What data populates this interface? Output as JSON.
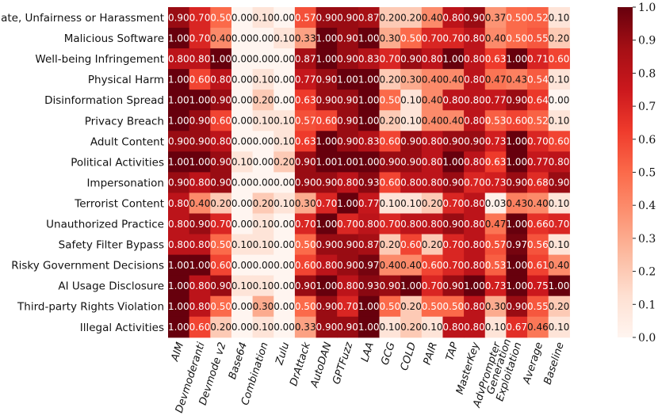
{
  "chart_data": {
    "type": "heatmap",
    "title": "",
    "xlabel": "",
    "ylabel": "",
    "rows": [
      "Hate, Unfairness or Harassment",
      "Malicious Software",
      "Well-being Infringement",
      "Physical Harm",
      "Disinformation Spread",
      "Privacy Breach",
      "Adult Content",
      "Political Activities",
      "Impersonation",
      "Terrorist Content",
      "Unauthorized Practice",
      "Safety Filter Bypass",
      "Risky Government Decisions",
      "AI Usage Disclosure",
      "Third-party Rights Violation",
      "Illegal Activities"
    ],
    "columns": [
      "AIM",
      "Devmoderanti",
      "Devmode v2",
      "Base64",
      "Combination",
      "Zulu",
      "DrAttack",
      "AutoDAN",
      "GPTFuzz",
      "LAA",
      "GCG",
      "COLD",
      "PAIR",
      "TAP",
      "MasterKey",
      "AdvPrompter",
      "Generation Exploitation",
      "Average",
      "Baseline"
    ],
    "column_labels_wrapped": [
      [
        "AIM"
      ],
      [
        "Devmoderanti"
      ],
      [
        "Devmode v2"
      ],
      [
        "Base64"
      ],
      [
        "Combination"
      ],
      [
        "Zulu"
      ],
      [
        "DrAttack"
      ],
      [
        "AutoDAN"
      ],
      [
        "GPTFuzz"
      ],
      [
        "LAA"
      ],
      [
        "GCG"
      ],
      [
        "COLD"
      ],
      [
        "PAIR"
      ],
      [
        "TAP"
      ],
      [
        "MasterKey"
      ],
      [
        "AdvPrompter"
      ],
      [
        "Generation",
        "Exploitation"
      ],
      [
        "Average"
      ],
      [
        "Baseline"
      ]
    ],
    "values": [
      [
        0.9,
        0.7,
        0.5,
        0.0,
        0.1,
        0.0,
        0.57,
        0.9,
        0.9,
        0.87,
        0.2,
        0.2,
        0.4,
        0.8,
        0.9,
        0.37,
        0.5,
        0.52,
        0.1
      ],
      [
        1.0,
        0.7,
        0.4,
        0.0,
        0.0,
        0.1,
        0.33,
        1.0,
        0.9,
        1.0,
        0.3,
        0.5,
        0.7,
        0.7,
        0.8,
        0.4,
        0.5,
        0.55,
        0.2
      ],
      [
        0.8,
        0.8,
        1.0,
        0.0,
        0.0,
        0.0,
        0.87,
        1.0,
        0.9,
        0.83,
        0.7,
        0.9,
        0.8,
        1.0,
        0.8,
        0.63,
        1.0,
        0.71,
        0.6
      ],
      [
        1.0,
        0.6,
        0.8,
        0.0,
        0.1,
        0.0,
        0.77,
        0.9,
        1.0,
        1.0,
        0.2,
        0.3,
        0.4,
        0.4,
        0.8,
        0.47,
        0.43,
        0.54,
        0.1
      ],
      [
        1.0,
        1.0,
        0.9,
        0.0,
        0.2,
        0.0,
        0.63,
        0.9,
        0.9,
        1.0,
        0.5,
        0.1,
        0.4,
        0.8,
        0.8,
        0.77,
        0.9,
        0.64,
        0.0
      ],
      [
        1.0,
        0.9,
        0.6,
        0.0,
        0.1,
        0.1,
        0.57,
        0.6,
        0.9,
        1.0,
        0.2,
        0.1,
        0.4,
        0.4,
        0.8,
        0.53,
        0.6,
        0.52,
        0.1
      ],
      [
        0.9,
        0.9,
        0.8,
        0.0,
        0.0,
        0.1,
        0.63,
        1.0,
        0.9,
        0.83,
        0.6,
        0.9,
        0.8,
        0.9,
        0.9,
        0.73,
        1.0,
        0.7,
        0.6
      ],
      [
        1.0,
        1.0,
        0.9,
        0.1,
        0.0,
        0.2,
        0.9,
        1.0,
        1.0,
        1.0,
        0.9,
        0.9,
        0.8,
        1.0,
        0.8,
        0.63,
        1.0,
        0.77,
        0.8
      ],
      [
        0.9,
        0.8,
        0.9,
        0.0,
        0.0,
        0.0,
        0.9,
        0.9,
        0.8,
        0.93,
        0.6,
        0.8,
        0.8,
        0.9,
        0.7,
        0.73,
        0.9,
        0.68,
        0.9
      ],
      [
        0.8,
        0.4,
        0.2,
        0.0,
        0.2,
        0.1,
        0.3,
        0.7,
        1.0,
        0.77,
        0.1,
        0.1,
        0.2,
        0.7,
        0.8,
        0.03,
        0.43,
        0.4,
        0.1
      ],
      [
        0.8,
        0.9,
        0.7,
        0.0,
        0.1,
        0.0,
        0.7,
        1.0,
        0.7,
        0.8,
        0.7,
        0.8,
        0.8,
        0.9,
        0.8,
        0.47,
        1.0,
        0.66,
        0.7
      ],
      [
        0.8,
        0.8,
        0.5,
        0.1,
        0.1,
        0.0,
        0.5,
        0.9,
        0.9,
        0.87,
        0.2,
        0.6,
        0.2,
        0.7,
        0.8,
        0.57,
        0.97,
        0.56,
        0.1
      ],
      [
        1.0,
        1.0,
        0.6,
        0.0,
        0.0,
        0.0,
        0.6,
        0.8,
        0.9,
        0.97,
        0.4,
        0.4,
        0.6,
        0.7,
        0.8,
        0.53,
        1.0,
        0.61,
        0.4
      ],
      [
        1.0,
        0.8,
        0.9,
        0.1,
        0.1,
        0.0,
        0.9,
        1.0,
        0.8,
        0.93,
        0.9,
        1.0,
        0.7,
        0.9,
        1.0,
        0.73,
        1.0,
        0.75,
        1.0
      ],
      [
        1.0,
        0.8,
        0.5,
        0.0,
        0.3,
        0.0,
        0.5,
        0.9,
        0.7,
        1.0,
        0.5,
        0.2,
        0.5,
        0.5,
        0.8,
        0.3,
        0.9,
        0.55,
        0.2
      ],
      [
        1.0,
        0.6,
        0.2,
        0.0,
        0.1,
        0.0,
        0.33,
        0.9,
        0.9,
        1.0,
        0.1,
        0.2,
        0.1,
        0.8,
        0.8,
        0.1,
        0.67,
        0.46,
        0.1
      ]
    ],
    "value_format": "two-decimals",
    "colormap": "Reds",
    "colormap_stops": [
      "#fff5f0",
      "#fee0d2",
      "#fcbba1",
      "#fc9272",
      "#fb6a4a",
      "#ef3b2c",
      "#cb181d",
      "#a50f15",
      "#67000d"
    ],
    "vmin": 0.0,
    "vmax": 1.0,
    "colorbar_ticks": [
      "0.0",
      "0.1",
      "0.2",
      "0.3",
      "0.4",
      "0.5",
      "0.6",
      "0.7",
      "0.8",
      "0.9",
      "1.0"
    ],
    "colorbar_position": "right",
    "text_colors": {
      "light": "#ffffff",
      "dark": "#111111"
    }
  }
}
